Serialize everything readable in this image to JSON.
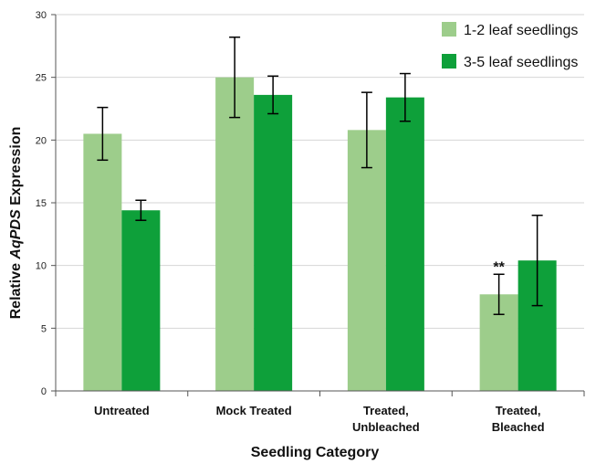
{
  "chart_data": {
    "type": "bar",
    "categories": [
      [
        "Untreated"
      ],
      [
        "Mock Treated"
      ],
      [
        "Treated,",
        "Unbleached"
      ],
      [
        "Treated,",
        "Bleached"
      ]
    ],
    "series": [
      {
        "name": "1-2 leaf seedlings",
        "color": "#9dcd8b",
        "values": [
          20.5,
          25.0,
          20.8,
          7.7
        ],
        "errors": [
          2.1,
          3.2,
          3.0,
          1.6
        ]
      },
      {
        "name": "3-5 leaf seedlings",
        "color": "#0ea03a",
        "values": [
          14.4,
          23.6,
          23.4,
          10.4
        ],
        "errors": [
          0.8,
          1.5,
          1.9,
          3.6
        ]
      }
    ],
    "ylim": [
      0,
      30
    ],
    "yticks": [
      0,
      5,
      10,
      15,
      20,
      25,
      30
    ],
    "xlabel": "Seedling Category",
    "ylabel_parts": [
      "Relative ",
      "AqPDS",
      " Expression"
    ],
    "grid": true,
    "legend_position": "top-right",
    "annotations": [
      {
        "text": "**",
        "category_index": 3,
        "series_index": 0
      }
    ]
  }
}
